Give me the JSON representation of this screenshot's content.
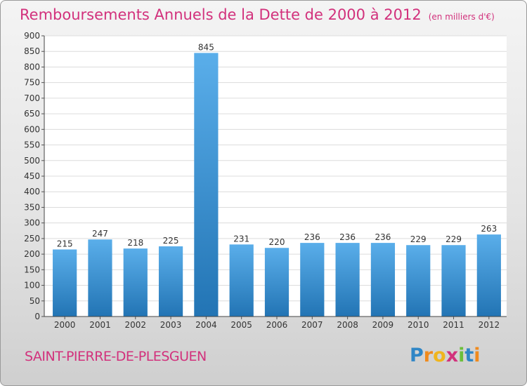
{
  "header": {
    "title": "Remboursements Annuels de la Dette de 2000 à 2012",
    "unit": "(en milliers d'€)"
  },
  "footer": {
    "town": "SAINT-PIERRE-DE-PLESGUEN",
    "logo": "Proxiti"
  },
  "colors": {
    "bar_top": "#5aaeea",
    "bar_bottom": "#2274b4",
    "accent": "#d2317c"
  },
  "chart_data": {
    "type": "bar",
    "title": "Remboursements Annuels de la Dette de 2000 à 2012",
    "xlabel": "",
    "ylabel": "",
    "categories": [
      "2000",
      "2001",
      "2002",
      "2003",
      "2004",
      "2005",
      "2006",
      "2007",
      "2008",
      "2009",
      "2010",
      "2011",
      "2012"
    ],
    "values": [
      215,
      247,
      218,
      225,
      845,
      231,
      220,
      236,
      236,
      236,
      229,
      229,
      263
    ],
    "ylim": [
      0,
      900
    ],
    "yticks": [
      0,
      50,
      100,
      150,
      200,
      250,
      300,
      350,
      400,
      450,
      500,
      550,
      600,
      650,
      700,
      750,
      800,
      850,
      900
    ],
    "grid": true,
    "legend": "none"
  }
}
